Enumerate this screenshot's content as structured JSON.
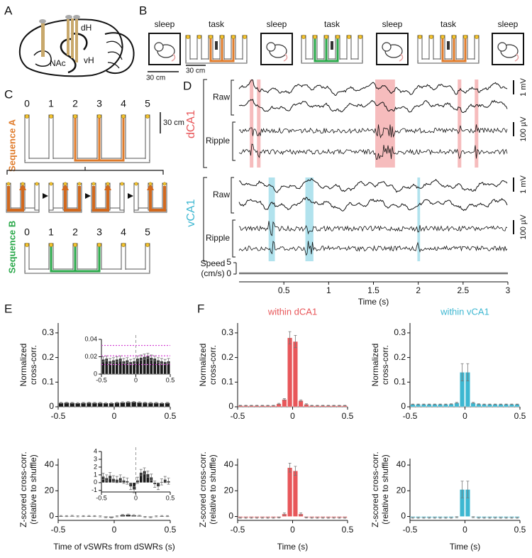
{
  "panels": {
    "A": {
      "label": "A",
      "dH": "dH",
      "NAc": "NAc",
      "vH": "vH"
    },
    "B": {
      "label": "B",
      "stages": [
        "sleep",
        "task",
        "sleep",
        "task",
        "sleep",
        "task",
        "sleep"
      ],
      "scale_sleep": "30 cm",
      "scale_task": "30 cm"
    },
    "C": {
      "label": "C",
      "sequence_a": "Sequence A",
      "sequence_b": "Sequence B",
      "arms_a": [
        "0",
        "1",
        "2",
        "3",
        "4",
        "5"
      ],
      "arms_b": [
        "0",
        "1",
        "2",
        "3",
        "4",
        "5"
      ],
      "scale": "30 cm"
    },
    "D": {
      "label": "D"
    },
    "E": {
      "label": "E"
    },
    "F": {
      "label": "F"
    }
  },
  "chart_data": [
    {
      "type": "traces",
      "xlim": [
        0,
        3
      ],
      "xticks": [
        0.5,
        1,
        1.5,
        2,
        2.5,
        3
      ],
      "xlabel": "Time (s)",
      "regions": [
        {
          "name": "dCA1",
          "color": "#e8575a",
          "rows": [
            "Raw",
            "Ripple"
          ],
          "scales": [
            "1 mV",
            "100 µV"
          ],
          "events": [
            [
              0.12,
              0.16
            ],
            [
              0.2,
              0.24
            ],
            [
              1.52,
              1.74
            ],
            [
              2.44,
              2.48
            ],
            [
              2.63,
              2.67
            ]
          ]
        },
        {
          "name": "vCA1",
          "color": "#3db7d1",
          "rows": [
            "Raw",
            "Ripple"
          ],
          "scales": [
            "1 mV",
            "100 µV"
          ],
          "events": [
            [
              0.33,
              0.4
            ],
            [
              0.74,
              0.83
            ],
            [
              1.99,
              2.02
            ]
          ]
        }
      ],
      "speed": {
        "label": [
          "Speed",
          "(cm/s)"
        ],
        "ylim": [
          0,
          5
        ],
        "yticks": [
          0,
          5
        ],
        "x": [
          0,
          3
        ],
        "values": [
          0.3,
          0.3
        ]
      }
    },
    {
      "type": "bar",
      "color": "#1a1a1a",
      "ylabel": [
        "Normalized",
        "cross-corr."
      ],
      "xlim": [
        -0.5,
        0.5
      ],
      "xticks": [
        -0.5,
        0,
        0.5
      ],
      "ylim": [
        0,
        0.34
      ],
      "yticks": [
        0,
        0.1,
        0.2,
        0.3
      ],
      "x": [
        -0.475,
        -0.425,
        -0.375,
        -0.325,
        -0.275,
        -0.225,
        -0.175,
        -0.125,
        -0.075,
        -0.025,
        0.025,
        0.075,
        0.125,
        0.175,
        0.225,
        0.275,
        0.325,
        0.375,
        0.425,
        0.475
      ],
      "values": [
        0.016,
        0.017,
        0.016,
        0.015,
        0.016,
        0.017,
        0.016,
        0.016,
        0.015,
        0.015,
        0.017,
        0.018,
        0.019,
        0.02,
        0.018,
        0.017,
        0.016,
        0.016,
        0.015,
        0.016
      ],
      "errors": [
        0.002,
        0.002,
        0.002,
        0.002,
        0.002,
        0.002,
        0.002,
        0.002,
        0.002,
        0.002,
        0.002,
        0.002,
        0.002,
        0.002,
        0.002,
        0.002,
        0.002,
        0.002,
        0.002,
        0.002
      ]
    },
    {
      "type": "bar",
      "inset": true,
      "color": "#1a1a1a",
      "xlim": [
        -0.5,
        0.5
      ],
      "xticks": [
        -0.5,
        0,
        0.5
      ],
      "ylim": [
        0,
        0.04
      ],
      "yticks": [
        0,
        0.02,
        0.04
      ],
      "x": [
        -0.475,
        -0.425,
        -0.375,
        -0.325,
        -0.275,
        -0.225,
        -0.175,
        -0.125,
        -0.075,
        -0.025,
        0.025,
        0.075,
        0.125,
        0.175,
        0.225,
        0.275,
        0.325,
        0.375,
        0.425,
        0.475
      ],
      "values": [
        0.017,
        0.018,
        0.015,
        0.016,
        0.017,
        0.018,
        0.015,
        0.016,
        0.014,
        0.015,
        0.018,
        0.019,
        0.02,
        0.021,
        0.019,
        0.018,
        0.016,
        0.015,
        0.014,
        0.015
      ],
      "errors": [
        0.003,
        0.003,
        0.003,
        0.003,
        0.003,
        0.003,
        0.003,
        0.003,
        0.003,
        0.003,
        0.003,
        0.003,
        0.003,
        0.003,
        0.003,
        0.003,
        0.003,
        0.003,
        0.003,
        0.003
      ],
      "bounds": [
        0.033,
        0.021,
        0.011
      ],
      "bounds_color": "#d23fd2"
    },
    {
      "type": "bar",
      "color": "#1a1a1a",
      "ylabel": [
        "Z-scored cross-corr.",
        "(relative to shuffle)"
      ],
      "xlabel": "Time of vSWRs from dSWRs (s)",
      "xlim": [
        -0.5,
        0.5
      ],
      "xticks": [
        -0.5,
        0,
        0.5
      ],
      "ylim": [
        -3,
        45
      ],
      "yticks": [
        0,
        20,
        40
      ],
      "x": [
        -0.475,
        -0.425,
        -0.375,
        -0.325,
        -0.275,
        -0.225,
        -0.175,
        -0.125,
        -0.075,
        -0.025,
        0.025,
        0.075,
        0.125,
        0.175,
        0.225,
        0.275,
        0.325,
        0.375,
        0.425,
        0.475
      ],
      "values": [
        0.4,
        0.3,
        0.5,
        0.2,
        0.3,
        0.4,
        0.3,
        0.1,
        -0.5,
        -0.8,
        0.2,
        1.2,
        1.5,
        1.0,
        0.6,
        -0.3,
        -0.5,
        0.2,
        0.4,
        0.3
      ],
      "errors": [
        0.4,
        0.4,
        0.4,
        0.4,
        0.4,
        0.4,
        0.4,
        0.4,
        0.4,
        0.4,
        0.4,
        0.4,
        0.4,
        0.4,
        0.4,
        0.4,
        0.4,
        0.4,
        0.4,
        0.4
      ]
    },
    {
      "type": "bar",
      "inset": true,
      "color": "#1a1a1a",
      "xlim": [
        -0.5,
        0.5
      ],
      "xticks": [
        -0.5,
        0,
        0.5
      ],
      "ylim": [
        -1.2,
        4
      ],
      "yticks": [
        -1,
        0,
        1,
        2,
        3,
        4
      ],
      "x": [
        -0.475,
        -0.425,
        -0.375,
        -0.325,
        -0.275,
        -0.225,
        -0.175,
        -0.125,
        -0.075,
        -0.025,
        0.025,
        0.075,
        0.125,
        0.175,
        0.225,
        0.275,
        0.325,
        0.375,
        0.425,
        0.475
      ],
      "values": [
        0.8,
        0.6,
        0.9,
        0.5,
        0.4,
        0.6,
        0.3,
        0.2,
        -0.5,
        -0.9,
        0.3,
        1.3,
        1.5,
        1.1,
        0.7,
        -0.2,
        -0.5,
        0.1,
        0.4,
        0.2
      ],
      "errors": [
        0.4,
        0.4,
        0.4,
        0.4,
        0.4,
        0.4,
        0.4,
        0.4,
        0.4,
        0.4,
        0.4,
        0.4,
        0.4,
        0.4,
        0.4,
        0.4,
        0.4,
        0.4,
        0.4,
        0.4
      ]
    },
    {
      "type": "bar",
      "title": "within dCA1",
      "color": "#e8575a",
      "ylabel": [
        "Normalized",
        "cross-corr."
      ],
      "xlim": [
        -0.5,
        0.5
      ],
      "xticks": [
        -0.5,
        0,
        0.5
      ],
      "ylim": [
        0,
        0.34
      ],
      "yticks": [
        0,
        0.1,
        0.2,
        0.3
      ],
      "x": [
        -0.475,
        -0.425,
        -0.375,
        -0.325,
        -0.275,
        -0.225,
        -0.175,
        -0.125,
        -0.075,
        -0.025,
        0.025,
        0.075,
        0.125,
        0.175,
        0.225,
        0.275,
        0.325,
        0.375,
        0.425,
        0.475
      ],
      "values": [
        0.005,
        0.005,
        0.005,
        0.005,
        0.005,
        0.005,
        0.005,
        0.012,
        0.03,
        0.28,
        0.265,
        0.025,
        0.01,
        0.005,
        0.005,
        0.005,
        0.005,
        0.005,
        0.005,
        0.005
      ],
      "errors": [
        0.001,
        0.001,
        0.001,
        0.001,
        0.001,
        0.001,
        0.001,
        0.002,
        0.003,
        0.025,
        0.025,
        0.003,
        0.002,
        0.001,
        0.001,
        0.001,
        0.001,
        0.001,
        0.001,
        0.001
      ]
    },
    {
      "type": "bar",
      "title": "within vCA1",
      "color": "#3db7d1",
      "ylabel": [
        "Normalized",
        "cross-corr."
      ],
      "xlim": [
        -0.5,
        0.5
      ],
      "xticks": [
        -0.5,
        0,
        0.5
      ],
      "ylim": [
        0,
        0.34
      ],
      "yticks": [
        0,
        0.1,
        0.2,
        0.3
      ],
      "x": [
        -0.475,
        -0.425,
        -0.375,
        -0.325,
        -0.275,
        -0.225,
        -0.175,
        -0.125,
        -0.075,
        -0.025,
        0.025,
        0.075,
        0.125,
        0.175,
        0.225,
        0.275,
        0.325,
        0.375,
        0.425,
        0.475
      ],
      "values": [
        0.01,
        0.01,
        0.01,
        0.01,
        0.01,
        0.01,
        0.01,
        0.011,
        0.016,
        0.14,
        0.14,
        0.016,
        0.011,
        0.01,
        0.01,
        0.01,
        0.01,
        0.01,
        0.01,
        0.01
      ],
      "errors": [
        0.001,
        0.001,
        0.001,
        0.001,
        0.001,
        0.001,
        0.001,
        0.001,
        0.002,
        0.035,
        0.035,
        0.002,
        0.001,
        0.001,
        0.001,
        0.001,
        0.001,
        0.001,
        0.001,
        0.001
      ]
    },
    {
      "type": "bar",
      "color": "#e8575a",
      "ylabel": [
        "Z-scored cross-corr.",
        "(relative to shuffle)"
      ],
      "xlabel": "Time (s)",
      "xlim": [
        -0.5,
        0.5
      ],
      "xticks": [
        -0.5,
        0,
        0.5
      ],
      "ylim": [
        -3,
        45
      ],
      "yticks": [
        0,
        20,
        40
      ],
      "x": [
        -0.475,
        -0.425,
        -0.375,
        -0.325,
        -0.275,
        -0.225,
        -0.175,
        -0.125,
        -0.075,
        -0.025,
        0.025,
        0.075,
        0.125,
        0.175,
        0.225,
        0.275,
        0.325,
        0.375,
        0.425,
        0.475
      ],
      "values": [
        -1,
        -1,
        -1,
        -1,
        -1,
        -1,
        -1,
        -0.8,
        2,
        38,
        35.5,
        2,
        -0.8,
        -1,
        -1,
        -1,
        -1,
        -1,
        -1,
        -1
      ],
      "errors": [
        0.4,
        0.4,
        0.4,
        0.4,
        0.4,
        0.4,
        0.4,
        0.4,
        0.8,
        3.5,
        3.5,
        0.8,
        0.4,
        0.4,
        0.4,
        0.4,
        0.4,
        0.4,
        0.4,
        0.4
      ]
    },
    {
      "type": "bar",
      "color": "#3db7d1",
      "ylabel": [
        "Z-scored cross-corr.",
        "(relative to shuffle)"
      ],
      "xlabel": "Time (s)",
      "xlim": [
        -0.5,
        0.5
      ],
      "xticks": [
        -0.5,
        0,
        0.5
      ],
      "ylim": [
        -3,
        45
      ],
      "yticks": [
        0,
        20,
        40
      ],
      "x": [
        -0.475,
        -0.425,
        -0.375,
        -0.325,
        -0.275,
        -0.225,
        -0.175,
        -0.125,
        -0.075,
        -0.025,
        0.025,
        0.075,
        0.125,
        0.175,
        0.225,
        0.275,
        0.325,
        0.375,
        0.425,
        0.475
      ],
      "values": [
        -1,
        -1,
        -1,
        -1,
        -1,
        -1,
        -1,
        -1,
        -0.5,
        21,
        21,
        -0.5,
        -1,
        -1,
        -1,
        -1,
        -1,
        -1,
        -1,
        -1
      ],
      "errors": [
        0.4,
        0.4,
        0.4,
        0.4,
        0.4,
        0.4,
        0.4,
        0.4,
        0.4,
        6.5,
        6.5,
        0.4,
        0.4,
        0.4,
        0.4,
        0.4,
        0.4,
        0.4,
        0.4,
        0.4
      ]
    }
  ]
}
